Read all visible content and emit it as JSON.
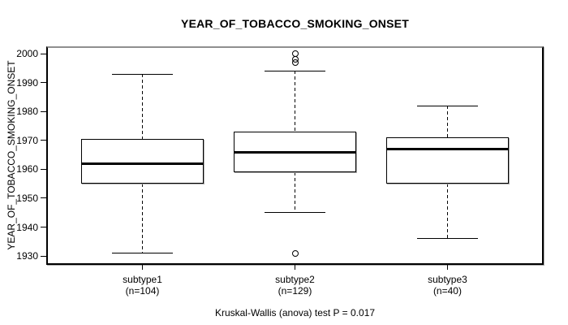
{
  "chart_data": {
    "type": "boxplot",
    "title": "YEAR_OF_TOBACCO_SMOKING_ONSET",
    "ylabel": "YEAR_OF_TOBACCO_SMOKING_ONSET",
    "xlabel": "",
    "ylim": [
      1927.5,
      2002
    ],
    "yticks": [
      1930,
      1940,
      1950,
      1960,
      1970,
      1980,
      1990,
      2000
    ],
    "grid": false,
    "legend": "none",
    "groups": [
      {
        "label": "subtype1",
        "sublabel": "(n=104)",
        "n": 104,
        "whisker_low": 1931,
        "q1": 1955,
        "median": 1962,
        "q3": 1970.5,
        "whisker_high": 1993,
        "outliers": []
      },
      {
        "label": "subtype2",
        "sublabel": "(n=129)",
        "n": 129,
        "whisker_low": 1945,
        "q1": 1959,
        "median": 1966,
        "q3": 1973,
        "whisker_high": 1994,
        "outliers": [
          2000,
          1998,
          1997,
          1931
        ]
      },
      {
        "label": "subtype3",
        "sublabel": "(n=40)",
        "n": 40,
        "whisker_low": 1936,
        "q1": 1955,
        "median": 1967,
        "q3": 1971,
        "whisker_high": 1982,
        "outliers": []
      }
    ],
    "annotation": "Kruskal-Wallis (anova) test P = 0.017"
  },
  "colors": {
    "line": "#000000",
    "median": "#000000",
    "box_fill": "#ffffff",
    "frame_top": "#8f8f8f",
    "shadow": "#aaaaaa",
    "background": "#ffffff",
    "text": "#000000"
  }
}
